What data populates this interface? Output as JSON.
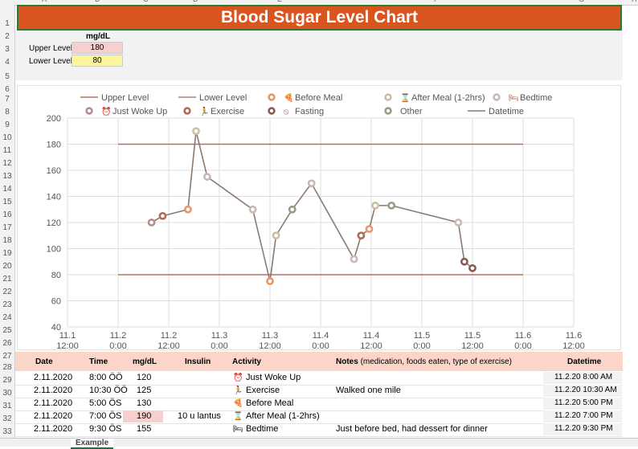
{
  "sheet": {
    "column_letters": [
      "A",
      "B",
      "C",
      "D",
      "E",
      "F",
      "G",
      "H"
    ],
    "row_numbers": [
      "1",
      "2",
      "3",
      "4",
      "5",
      "6",
      "7",
      "8",
      "9",
      "10",
      "11",
      "12",
      "13",
      "14",
      "15",
      "16",
      "17",
      "18",
      "19",
      "20",
      "21",
      "22",
      "23",
      "24",
      "25",
      "26",
      "27",
      "28",
      "29",
      "30",
      "31",
      "32",
      "33"
    ],
    "title": "Blood Sugar Level Chart",
    "unit_header": "mg/dL",
    "upper_label": "Upper Level",
    "upper_value": "180",
    "lower_label": "Lower Level",
    "lower_value": "80",
    "colors": {
      "title_bg": "#d9541e",
      "upper_cell": "#f8cfcf",
      "lower_cell": "#fdf59a",
      "table_header": "#fad5c8",
      "highlight": "#f8cfcf"
    }
  },
  "chart_data": {
    "type": "scatter",
    "legend": [
      {
        "label": "Upper Level",
        "kind": "line",
        "color": "#b86e60"
      },
      {
        "label": "Lower Level",
        "kind": "line",
        "color": "#a08878"
      },
      {
        "label": "Before Meal",
        "kind": "marker",
        "color": "#e8956a",
        "icon": "pizza-icon"
      },
      {
        "label": "After Meal (1-2hrs)",
        "kind": "marker",
        "color": "#cbbfa8",
        "icon": "hourglass-icon"
      },
      {
        "label": "Bedtime",
        "kind": "marker",
        "color": "#c8b8b8",
        "icon": "bed-icon"
      },
      {
        "label": "Just Woke Up",
        "kind": "marker",
        "color": "#b38f8f",
        "icon": "alarm-clock-icon"
      },
      {
        "label": "Exercise",
        "kind": "marker",
        "color": "#b06a55",
        "icon": "runner-icon"
      },
      {
        "label": "Fasting",
        "kind": "marker",
        "color": "#8b5a50",
        "icon": "prohibited-icon"
      },
      {
        "label": "Other",
        "kind": "marker",
        "color": "#9a9a88"
      },
      {
        "label": "Datetime",
        "kind": "line",
        "color": "#8a7a70"
      }
    ],
    "legend_placement": "top",
    "grid": true,
    "xlim": [
      11.1,
      11.6
    ],
    "ylim": [
      40,
      200
    ],
    "x_ticks": [
      {
        "value": 11.1,
        "line1": "11.1",
        "line2": "12:00"
      },
      {
        "value": 11.15,
        "line1": "11.2",
        "line2": "0:00"
      },
      {
        "value": 11.2,
        "line1": "11.2",
        "line2": "12:00"
      },
      {
        "value": 11.25,
        "line1": "11.3",
        "line2": "0:00"
      },
      {
        "value": 11.3,
        "line1": "11.3",
        "line2": "12:00"
      },
      {
        "value": 11.35,
        "line1": "11.4",
        "line2": "0:00"
      },
      {
        "value": 11.4,
        "line1": "11.4",
        "line2": "12:00"
      },
      {
        "value": 11.45,
        "line1": "11.5",
        "line2": "0:00"
      },
      {
        "value": 11.5,
        "line1": "11.5",
        "line2": "12:00"
      },
      {
        "value": 11.55,
        "line1": "11.6",
        "line2": "0:00"
      },
      {
        "value": 11.6,
        "line1": "11.6",
        "line2": "12:00"
      }
    ],
    "y_ticks": [
      40,
      60,
      80,
      100,
      120,
      140,
      160,
      180,
      200
    ],
    "upper_level": 180,
    "lower_level": 80,
    "line_range": [
      11.15,
      11.55
    ],
    "points": [
      {
        "x": 11.183,
        "y": 120,
        "cat": "Just Woke Up"
      },
      {
        "x": 11.194,
        "y": 125,
        "cat": "Exercise"
      },
      {
        "x": 11.219,
        "y": 130,
        "cat": "Before Meal"
      },
      {
        "x": 11.227,
        "y": 190,
        "cat": "After Meal (1-2hrs)"
      },
      {
        "x": 11.238,
        "y": 155,
        "cat": "Bedtime"
      },
      {
        "x": 11.283,
        "y": 130,
        "cat": "Bedtime"
      },
      {
        "x": 11.3,
        "y": 75,
        "cat": "Before Meal"
      },
      {
        "x": 11.306,
        "y": 110,
        "cat": "After Meal (1-2hrs)"
      },
      {
        "x": 11.322,
        "y": 130,
        "cat": "Other"
      },
      {
        "x": 11.341,
        "y": 150,
        "cat": "Bedtime"
      },
      {
        "x": 11.383,
        "y": 92,
        "cat": "Bedtime"
      },
      {
        "x": 11.39,
        "y": 110,
        "cat": "Exercise"
      },
      {
        "x": 11.398,
        "y": 115,
        "cat": "Before Meal"
      },
      {
        "x": 11.404,
        "y": 133,
        "cat": "After Meal (1-2hrs)"
      },
      {
        "x": 11.42,
        "y": 133,
        "cat": "Other"
      },
      {
        "x": 11.486,
        "y": 120,
        "cat": "Bedtime"
      },
      {
        "x": 11.492,
        "y": 90,
        "cat": "Fasting"
      },
      {
        "x": 11.5,
        "y": 85,
        "cat": "Fasting"
      }
    ]
  },
  "table": {
    "headers": [
      "Date",
      "Time",
      "mg/dL",
      "Insulin",
      "Activity",
      "Notes",
      "(medication, foods eaten, type of exercise)",
      "Datetime"
    ],
    "rows": [
      {
        "date": "2.11.2020",
        "time": "8:00 ÖÖ",
        "mgdl": "120",
        "insulin": "",
        "activity_icon": "⏰",
        "activity_icon_name": "alarm-clock-icon",
        "activity": "Just Woke Up",
        "notes": "",
        "datetime": "11.2.20 8:00 AM",
        "highlight": false
      },
      {
        "date": "2.11.2020",
        "time": "10:30 ÖÖ",
        "mgdl": "125",
        "insulin": "",
        "activity_icon": "🏃",
        "activity_icon_name": "runner-icon",
        "activity": "Exercise",
        "notes": "Walked one mile",
        "datetime": "11.2.20 10:30 AM",
        "highlight": false
      },
      {
        "date": "2.11.2020",
        "time": "5:00 ÖS",
        "mgdl": "130",
        "insulin": "",
        "activity_icon": "🍕",
        "activity_icon_name": "pizza-icon",
        "activity": "Before Meal",
        "notes": "",
        "datetime": "11.2.20 5:00 PM",
        "highlight": false
      },
      {
        "date": "2.11.2020",
        "time": "7:00 ÖS",
        "mgdl": "190",
        "insulin": "10 u lantus",
        "activity_icon": "⌛",
        "activity_icon_name": "hourglass-icon",
        "activity": "After Meal (1-2hrs)",
        "notes": "",
        "datetime": "11.2.20 7:00 PM",
        "highlight": true
      },
      {
        "date": "2.11.2020",
        "time": "9:30 ÖS",
        "mgdl": "155",
        "insulin": "",
        "activity_icon": "🛏",
        "activity_icon_name": "bed-icon",
        "activity": "Bedtime",
        "notes": "Just before bed, had dessert for dinner",
        "datetime": "11.2.20 9:30 PM",
        "highlight": false
      }
    ]
  },
  "tabs": {
    "active": "Example"
  }
}
